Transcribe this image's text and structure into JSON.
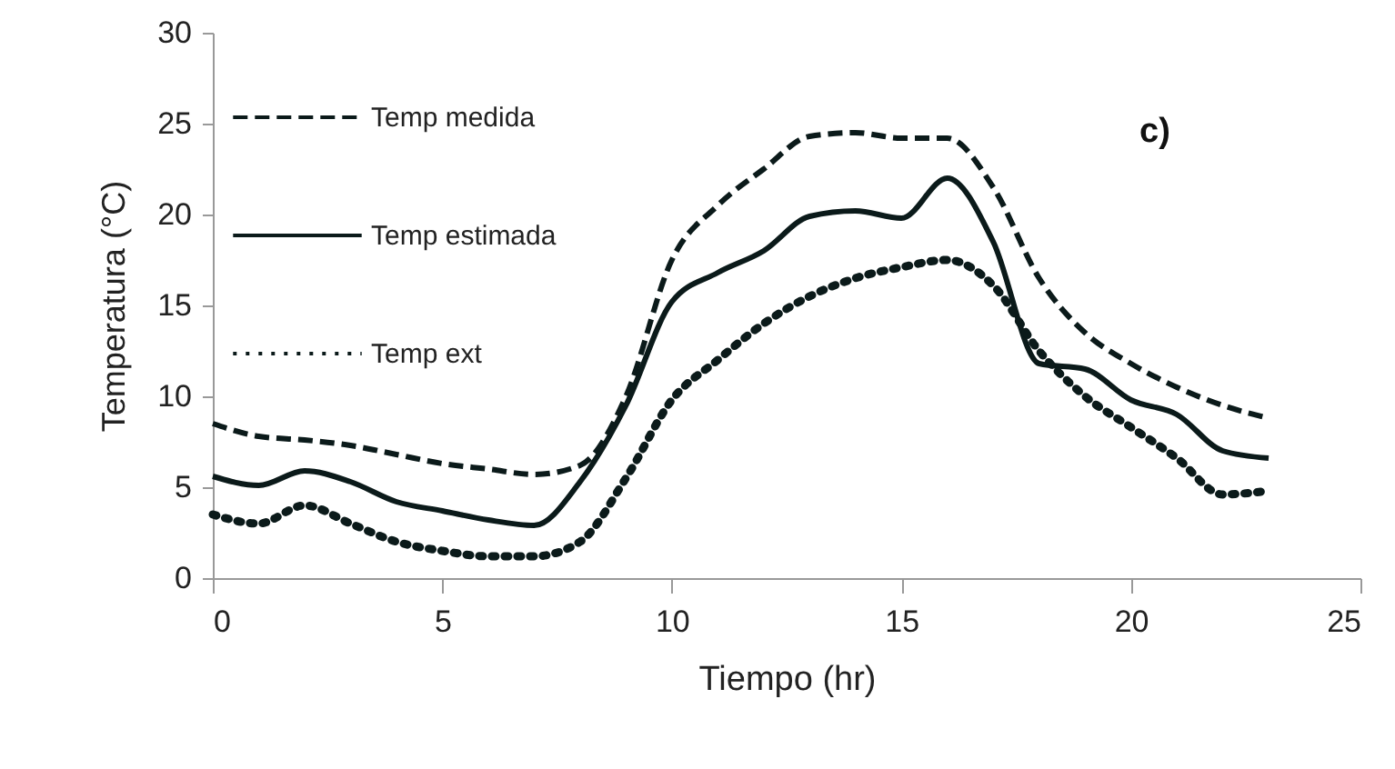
{
  "chart_data": {
    "type": "line",
    "xlabel": "Tiempo (hr)",
    "ylabel": "Temperatura (°C)",
    "annotations": [
      "c)"
    ],
    "x": [
      0,
      1,
      2,
      3,
      4,
      5,
      6,
      7,
      8,
      9,
      10,
      11,
      12,
      13,
      14,
      15,
      16,
      17,
      18,
      19,
      20,
      21,
      22,
      23
    ],
    "xlim": [
      0,
      25
    ],
    "xticks": [
      0,
      5,
      10,
      15,
      20,
      25
    ],
    "ylim": [
      0,
      30
    ],
    "yticks": [
      0,
      5,
      10,
      15,
      20,
      25,
      30
    ],
    "legend": "top left",
    "marker": "none",
    "series": [
      {
        "name": "Temp medida",
        "color": "#0b1a1a",
        "line_style": "dashed",
        "values": [
          8.5,
          7.8,
          7.6,
          7.3,
          6.8,
          6.3,
          6.0,
          5.7,
          6.2,
          10,
          17.5,
          20.5,
          22.5,
          24.3,
          24.5,
          24.2,
          24.2,
          21.5,
          16.5,
          13.5,
          11.8,
          10.5,
          9.5,
          8.8
        ]
      },
      {
        "name": "Temp estimada",
        "color": "#0b1a1a",
        "line_style": "solid",
        "values": [
          5.6,
          5.1,
          5.9,
          5.3,
          4.2,
          3.7,
          3.2,
          2.9,
          5.3,
          9.5,
          15.2,
          16.8,
          18,
          19.9,
          20.2,
          19.8,
          22,
          18.5,
          11.8,
          11.5,
          9.8,
          9.0,
          7.0,
          6.6
        ]
      },
      {
        "name": "Temp ext",
        "color": "#0b1a1a",
        "line_style": "dotted",
        "values": [
          3.5,
          3,
          4,
          3,
          2,
          1.5,
          1.2,
          1.2,
          2,
          5.5,
          9.8,
          12,
          14,
          15.5,
          16.5,
          17.1,
          17.5,
          16.1,
          12.5,
          10,
          8.3,
          6.6,
          4.6,
          4.8
        ]
      }
    ]
  }
}
